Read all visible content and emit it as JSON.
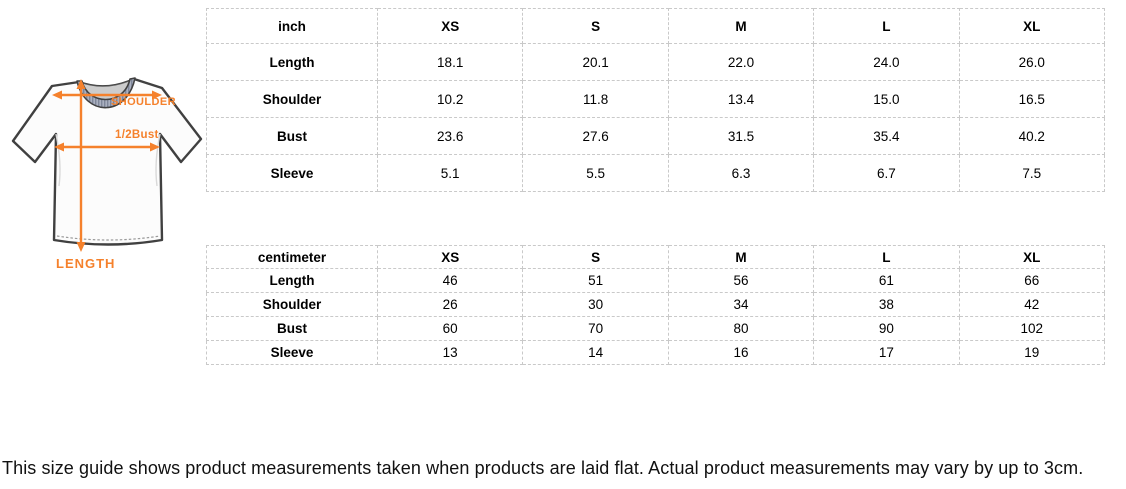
{
  "diagram": {
    "shoulder_label": "SHOULDER",
    "bust_label": "1/2Bust",
    "length_label": "LENGTH",
    "accent_color": "#f5812c",
    "outline_color": "#404040"
  },
  "tables": [
    {
      "unit": "inch",
      "columns": [
        "XS",
        "S",
        "M",
        "L",
        "XL"
      ],
      "rows": [
        {
          "label": "Length",
          "values": [
            "18.1",
            "20.1",
            "22.0",
            "24.0",
            "26.0"
          ]
        },
        {
          "label": "Shoulder",
          "values": [
            "10.2",
            "11.8",
            "13.4",
            "15.0",
            "16.5"
          ]
        },
        {
          "label": "Bust",
          "values": [
            "23.6",
            "27.6",
            "31.5",
            "35.4",
            "40.2"
          ]
        },
        {
          "label": "Sleeve",
          "values": [
            "5.1",
            "5.5",
            "6.3",
            "6.7",
            "7.5"
          ]
        }
      ]
    },
    {
      "unit": "centimeter",
      "columns": [
        "XS",
        "S",
        "M",
        "L",
        "XL"
      ],
      "rows": [
        {
          "label": "Length",
          "values": [
            "46",
            "51",
            "56",
            "61",
            "66"
          ]
        },
        {
          "label": "Shoulder",
          "values": [
            "26",
            "30",
            "34",
            "38",
            "42"
          ]
        },
        {
          "label": "Bust",
          "values": [
            "60",
            "70",
            "80",
            "90",
            "102"
          ]
        },
        {
          "label": "Sleeve",
          "values": [
            "13",
            "14",
            "16",
            "17",
            "19"
          ]
        }
      ]
    }
  ],
  "footnote": "This size guide shows product measurements taken when products are laid flat. Actual product measurements may vary by up to 3cm."
}
